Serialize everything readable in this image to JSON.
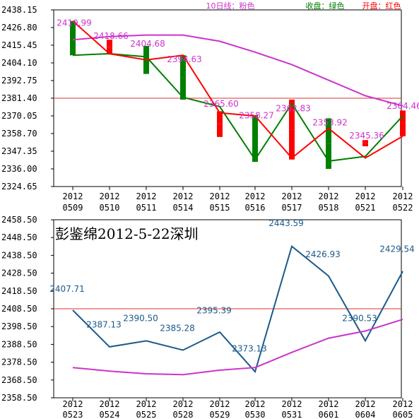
{
  "chart_data": [
    {
      "type": "candlestick",
      "legend": [
        {
          "label": "10日线：粉色",
          "color": "#cc33cc"
        },
        {
          "label": "收盘：绿色",
          "color": "#008000"
        },
        {
          "label": "开盘：红色",
          "color": "#ff0000"
        }
      ],
      "yticks": [
        "2438.15",
        "2426.80",
        "2415.45",
        "2404.10",
        "2392.75",
        "2381.40",
        "2370.05",
        "2358.70",
        "2347.35",
        "2336.00",
        "2324.65"
      ],
      "ylim": [
        2324.65,
        2438.15
      ],
      "reference_line": 2381.4,
      "categories": [
        {
          "year": "2012",
          "date": "0509"
        },
        {
          "year": "2012",
          "date": "0510"
        },
        {
          "year": "2012",
          "date": "0511"
        },
        {
          "year": "2012",
          "date": "0514"
        },
        {
          "year": "2012",
          "date": "0515"
        },
        {
          "year": "2012",
          "date": "0516"
        },
        {
          "year": "2012",
          "date": "0517"
        },
        {
          "year": "2012",
          "date": "0518"
        },
        {
          "year": "2012",
          "date": "0521"
        },
        {
          "year": "2012",
          "date": "0522"
        }
      ],
      "open": [
        2431.0,
        2419.0,
        2415.0,
        2409.0,
        2373.0,
        2370.5,
        2380.5,
        2368.5,
        2350.5,
        2373.5
      ],
      "close": [
        2409.0,
        2409.5,
        2397.0,
        2380.5,
        2356.5,
        2340.5,
        2342.0,
        2336.0,
        2354.5,
        2357.0
      ],
      "ma10": [
        2419.0,
        2421.0,
        2422.0,
        2422.0,
        2418.0,
        2411.0,
        2403.0,
        2393.0,
        2383.0,
        2376.5
      ],
      "close_line": [
        2409.0,
        2410.0,
        2408.0,
        2382.0,
        2376.0,
        2342.0,
        2378.0,
        2341.0,
        2344.0,
        2370.0
      ],
      "open_line": [
        2431.0,
        2410.0,
        2406.0,
        2409.0,
        2372.0,
        2370.0,
        2343.0,
        2362.0,
        2343.0,
        2357.0
      ],
      "annotations": [
        "2419.99",
        "2418.66",
        "2404.68",
        "2394.63",
        "2365.60",
        "2358.27",
        "2362.83",
        "2353.92",
        "2345.36",
        "2364.46"
      ],
      "annotation_y": [
        2428.0,
        2419.5,
        2414.5,
        2404.5,
        2376.0,
        2368.5,
        2373.0,
        2364.0,
        2355.5,
        2374.5
      ]
    },
    {
      "type": "line",
      "title": "彭鉴绵2012-5-22深圳",
      "yticks": [
        "2458.50",
        "2448.50",
        "2438.50",
        "2428.50",
        "2418.50",
        "2408.50",
        "2398.50",
        "2388.50",
        "2378.50",
        "2368.50",
        "2358.50"
      ],
      "ylim": [
        2358.5,
        2458.5
      ],
      "reference_line": 2408.5,
      "categories": [
        {
          "year": "2012",
          "date": "0523"
        },
        {
          "year": "2012",
          "date": "0524"
        },
        {
          "year": "2012",
          "date": "0525"
        },
        {
          "year": "2012",
          "date": "0528"
        },
        {
          "year": "2012",
          "date": "0529"
        },
        {
          "year": "2012",
          "date": "0530"
        },
        {
          "year": "2012",
          "date": "0531"
        },
        {
          "year": "2012",
          "date": "0601"
        },
        {
          "year": "2012",
          "date": "0604"
        },
        {
          "year": "2012",
          "date": "0605"
        }
      ],
      "series": [
        {
          "color": "#1a5a8a",
          "values": [
            2407.71,
            2387.13,
            2390.5,
            2385.28,
            2395.39,
            2373.13,
            2443.59,
            2426.93,
            2390.53,
            2429.54
          ]
        },
        {
          "color": "#cc33cc",
          "values": [
            2375.5,
            2373.5,
            2372.0,
            2371.5,
            2374.0,
            2375.5,
            2384.0,
            2392.0,
            2396.0,
            2402.5
          ]
        }
      ],
      "labels": [
        "2407.71",
        "2387.13",
        "2390.50",
        "2385.28",
        "2395.39",
        "2373.13",
        "2443.59",
        "2426.93",
        "2390.53",
        "2429.54"
      ],
      "label_y": [
        2418.0,
        2398.0,
        2401.5,
        2396.0,
        2406.0,
        2384.5,
        2455.0,
        2437.5,
        2401.5,
        2440.5
      ]
    }
  ]
}
